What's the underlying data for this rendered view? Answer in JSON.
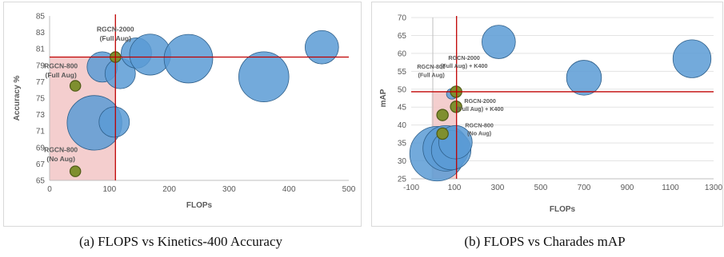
{
  "chart_data": [
    {
      "type": "scatter",
      "xlabel": "FLOPs",
      "ylabel": "Accuracy %",
      "xlim": [
        0,
        500
      ],
      "ylim": [
        65,
        85
      ],
      "xticks": [
        "0",
        "100",
        "200",
        "300",
        "400",
        "500"
      ],
      "yticks": [
        "65",
        "67",
        "69",
        "71",
        "73",
        "75",
        "77",
        "79",
        "81",
        "83",
        "85"
      ],
      "grid": false,
      "colors": {
        "bubble": "#5b9bd5",
        "bubble_edge": "#2e5f8a",
        "highlight": "#7f8f2f",
        "highlight_edge": "#4e5a16",
        "line": "#c00000",
        "shade": "#f2c6c6"
      },
      "reference_lines": {
        "x": 110,
        "y": 80
      },
      "shaded_region": {
        "x": [
          0,
          110
        ],
        "y": [
          65,
          80
        ]
      },
      "bubbles": [
        {
          "x": 88,
          "y": 78.8,
          "size": 2.0,
          "color": "#5b9bd5"
        },
        {
          "x": 75,
          "y": 72.0,
          "size": 3.6,
          "color": "#5b9bd5"
        },
        {
          "x": 108,
          "y": 72.1,
          "size": 2.0,
          "color": "#5b9bd5"
        },
        {
          "x": 118,
          "y": 78.0,
          "size": 2.0,
          "color": "#5b9bd5"
        },
        {
          "x": 145,
          "y": 80.5,
          "size": 2.0,
          "color": "#5b9bd5"
        },
        {
          "x": 168,
          "y": 80.3,
          "size": 2.7,
          "color": "#5b9bd5"
        },
        {
          "x": 232,
          "y": 79.8,
          "size": 3.2,
          "color": "#5b9bd5"
        },
        {
          "x": 358,
          "y": 77.6,
          "size": 3.3,
          "color": "#5b9bd5"
        },
        {
          "x": 455,
          "y": 81.2,
          "size": 2.2,
          "color": "#5b9bd5"
        },
        {
          "x": 110,
          "y": 80.0,
          "size": 0.7,
          "color": "#7f8f2f"
        },
        {
          "x": 43,
          "y": 76.5,
          "size": 0.7,
          "color": "#7f8f2f"
        },
        {
          "x": 43,
          "y": 66.1,
          "size": 0.7,
          "color": "#7f8f2f"
        }
      ],
      "annotations": [
        {
          "lines": [
            "RGCN-2000",
            "(Full Aug)"
          ],
          "x": 110,
          "y": 80.0
        },
        {
          "lines": [
            "RGCN-800",
            "(Full Aug)"
          ],
          "x": 43,
          "y": 76.5
        },
        {
          "lines": [
            "RGCN-800",
            "(No Aug)"
          ],
          "x": 43,
          "y": 66.1
        }
      ]
    },
    {
      "type": "scatter",
      "xlabel": "FLOPs",
      "ylabel": "mAP",
      "xlim": [
        -100,
        1300
      ],
      "ylim": [
        25,
        70
      ],
      "xticks": [
        "-100",
        "100",
        "300",
        "500",
        "700",
        "900",
        "1100",
        "1300"
      ],
      "yticks": [
        "25",
        "30",
        "35",
        "40",
        "45",
        "50",
        "55",
        "60",
        "65",
        "70"
      ],
      "grid": true,
      "colors": {
        "bubble": "#5b9bd5",
        "bubble_edge": "#2e5f8a",
        "highlight": "#7f8f2f",
        "highlight_edge": "#4e5a16",
        "line": "#c00000",
        "shade": "#f2c6c6"
      },
      "reference_lines": {
        "x": 110,
        "y": 49.3
      },
      "shaded_region": {
        "x": [
          -5,
          110
        ],
        "y": [
          25,
          49.3
        ]
      },
      "bubbles": [
        {
          "x": 305,
          "y": 63.2,
          "size": 2.2,
          "color": "#5b9bd5"
        },
        {
          "x": 700,
          "y": 53.2,
          "size": 2.3,
          "color": "#5b9bd5"
        },
        {
          "x": 1200,
          "y": 58.5,
          "size": 2.5,
          "color": "#5b9bd5"
        },
        {
          "x": 20,
          "y": 32.0,
          "size": 3.6,
          "color": "#5b9bd5"
        },
        {
          "x": 60,
          "y": 33.5,
          "size": 3.0,
          "color": "#5b9bd5"
        },
        {
          "x": 85,
          "y": 33.0,
          "size": 2.6,
          "color": "#5b9bd5"
        },
        {
          "x": 105,
          "y": 35.2,
          "size": 2.2,
          "color": "#5b9bd5"
        },
        {
          "x": 88,
          "y": 48.7,
          "size": 0.7,
          "color": "#5b9bd5"
        },
        {
          "x": 108,
          "y": 49.3,
          "size": 0.75,
          "color": "#7f8f2f"
        },
        {
          "x": 108,
          "y": 45.1,
          "size": 0.75,
          "color": "#7f8f2f"
        },
        {
          "x": 45,
          "y": 42.8,
          "size": 0.75,
          "color": "#7f8f2f"
        },
        {
          "x": 45,
          "y": 37.6,
          "size": 0.75,
          "color": "#7f8f2f"
        }
      ],
      "annotations": [
        {
          "lines": [
            "RGCN-800",
            "(Full Aug)"
          ],
          "x": 45,
          "y": 42.8
        },
        {
          "lines": [
            "RGCN-2000",
            "(Full Aug) + K400"
          ],
          "x": 108,
          "y": 49.3
        },
        {
          "lines": [
            "RGCN-2000",
            "(Full Aug) + K400"
          ],
          "x": 108,
          "y": 45.1
        },
        {
          "lines": [
            "RGCN-800",
            "(No Aug)"
          ],
          "x": 45,
          "y": 37.6
        }
      ]
    }
  ],
  "captions": {
    "a": "(a) FLOPS vs Kinetics-400 Accuracy",
    "b": "(b) FLOPS vs Charades mAP"
  }
}
